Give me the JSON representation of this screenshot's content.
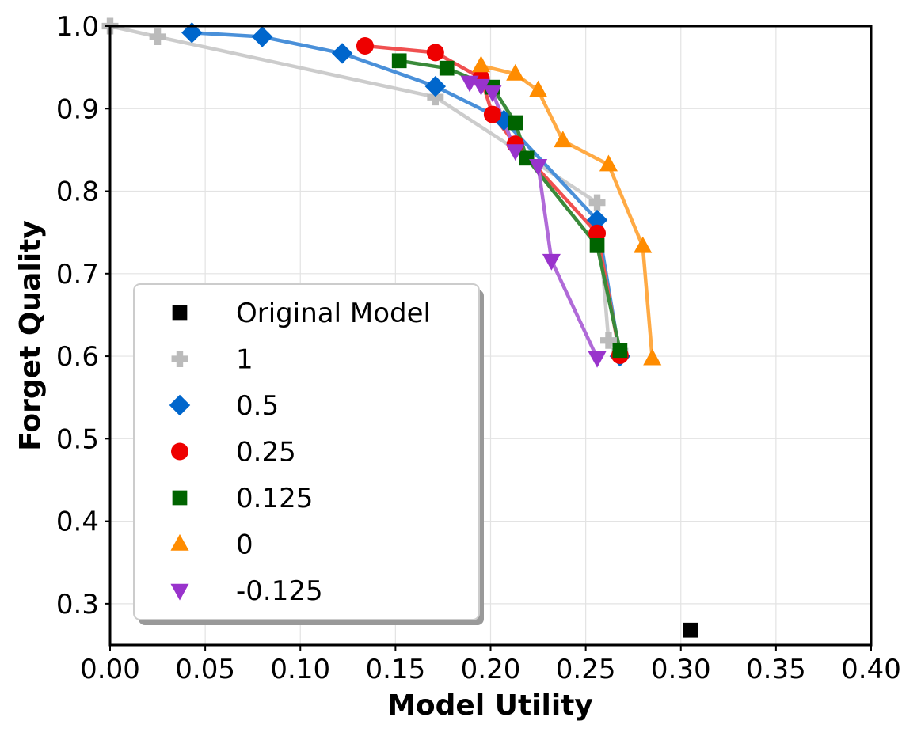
{
  "chart_data": {
    "type": "line",
    "title": "",
    "xlabel": "Model Utility",
    "ylabel": "Forget Quality",
    "xlim": [
      0.0,
      0.4
    ],
    "ylim": [
      0.25,
      1.0
    ],
    "xticks": [
      "0.00",
      "0.05",
      "0.10",
      "0.15",
      "0.20",
      "0.25",
      "0.30",
      "0.35",
      "0.40"
    ],
    "yticks": [
      "0.3",
      "0.4",
      "0.5",
      "0.6",
      "0.7",
      "0.8",
      "0.9",
      "1.0"
    ],
    "grid": true,
    "legend_position": "lower-left",
    "series": [
      {
        "name": "Original Model",
        "marker": "square",
        "color": "#000000",
        "line": false,
        "points": [
          [
            0.305,
            0.268
          ]
        ]
      },
      {
        "name": "1",
        "marker": "plus",
        "color": "#bbbbbb",
        "line_color": "#cccccc",
        "line": true,
        "points": [
          [
            0.0,
            1.0
          ],
          [
            0.025,
            0.987
          ],
          [
            0.171,
            0.914
          ],
          [
            0.256,
            0.786
          ],
          [
            0.262,
            0.619
          ],
          [
            0.268,
            0.606
          ]
        ]
      },
      {
        "name": "0.5",
        "marker": "diamond",
        "color": "#0066cc",
        "line_color": "#4a90d9",
        "line": true,
        "points": [
          [
            0.043,
            0.992
          ],
          [
            0.08,
            0.987
          ],
          [
            0.122,
            0.967
          ],
          [
            0.171,
            0.927
          ],
          [
            0.207,
            0.886
          ],
          [
            0.256,
            0.765
          ],
          [
            0.268,
            0.6
          ]
        ]
      },
      {
        "name": "0.25",
        "marker": "circle",
        "color": "#ee0000",
        "line_color": "#f05050",
        "line": true,
        "points": [
          [
            0.134,
            0.976
          ],
          [
            0.171,
            0.968
          ],
          [
            0.195,
            0.937
          ],
          [
            0.201,
            0.893
          ],
          [
            0.213,
            0.857
          ],
          [
            0.256,
            0.749
          ],
          [
            0.268,
            0.601
          ]
        ]
      },
      {
        "name": "0.125",
        "marker": "square",
        "color": "#006400",
        "line_color": "#3a8a3a",
        "line": true,
        "points": [
          [
            0.152,
            0.958
          ],
          [
            0.177,
            0.949
          ],
          [
            0.201,
            0.926
          ],
          [
            0.213,
            0.883
          ],
          [
            0.219,
            0.84
          ],
          [
            0.256,
            0.734
          ],
          [
            0.268,
            0.607
          ]
        ]
      },
      {
        "name": "0",
        "marker": "triangle-up",
        "color": "#ff8c00",
        "line_color": "#ffaa44",
        "line": true,
        "points": [
          [
            0.195,
            0.952
          ],
          [
            0.213,
            0.942
          ],
          [
            0.225,
            0.922
          ],
          [
            0.238,
            0.861
          ],
          [
            0.262,
            0.832
          ],
          [
            0.28,
            0.733
          ],
          [
            0.285,
            0.597
          ]
        ]
      },
      {
        "name": "-0.125",
        "marker": "triangle-down",
        "color": "#9933cc",
        "line_color": "#b06ad8",
        "line": true,
        "points": [
          [
            0.189,
            0.932
          ],
          [
            0.195,
            0.928
          ],
          [
            0.201,
            0.92
          ],
          [
            0.213,
            0.849
          ],
          [
            0.225,
            0.831
          ],
          [
            0.232,
            0.716
          ],
          [
            0.256,
            0.598
          ]
        ]
      }
    ]
  }
}
